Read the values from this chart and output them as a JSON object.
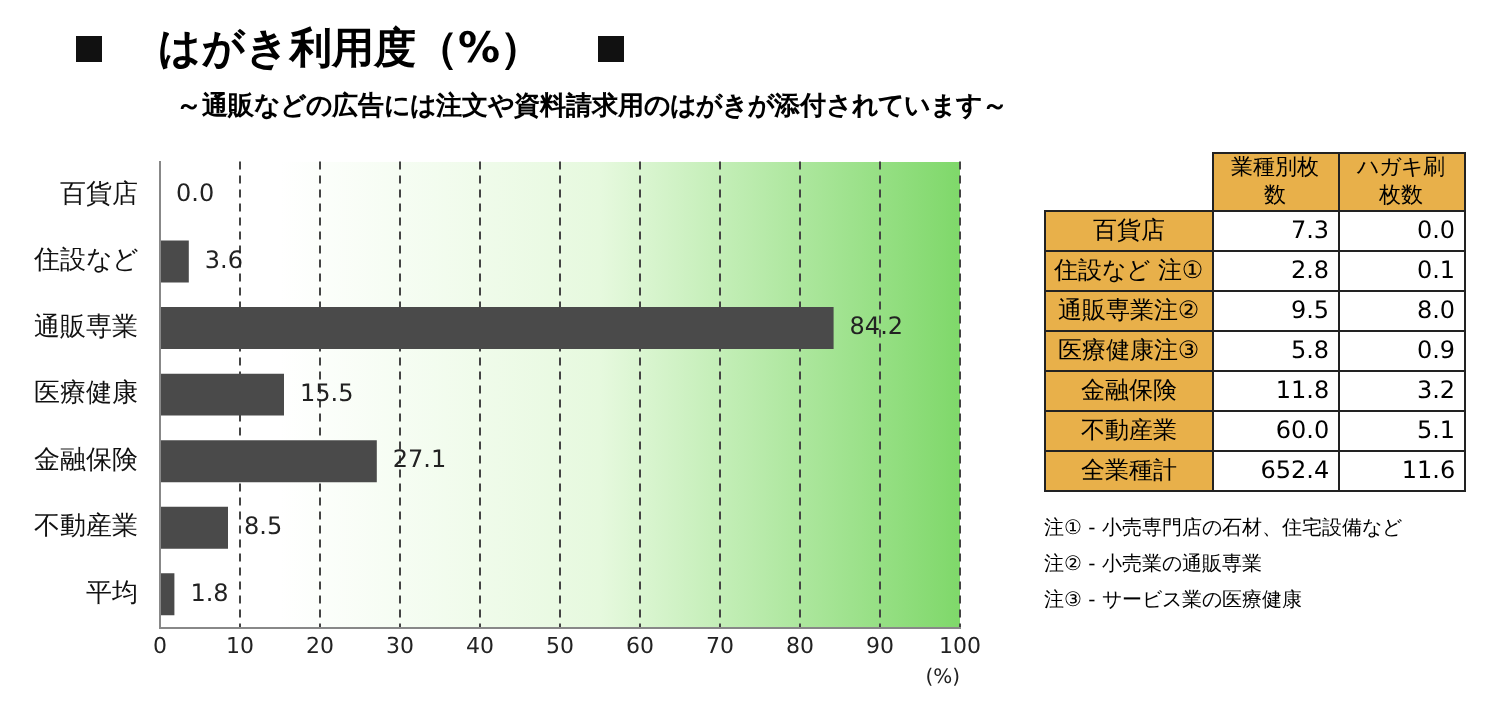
{
  "chart_data": [
    {
      "type": "bar",
      "title": "はがき利用度（%）",
      "subtitle": "～通販などの広告には注文や資料請求用のはがきが添付されています～",
      "orientation": "horizontal",
      "categories": [
        "百貨店",
        "住設など",
        "通販専業",
        "医療健康",
        "金融保険",
        "不動産業",
        "平均"
      ],
      "values": [
        0,
        3.6,
        84.2,
        15.5,
        27.1,
        8.5,
        1.8
      ],
      "value_labels": [
        "0.0",
        "3.6",
        "84.2",
        "15.5",
        "27.1",
        "8.5",
        "1.8"
      ],
      "color": "#4a4a4a",
      "xlim": [
        0,
        100
      ],
      "xticks": [
        0,
        10,
        20,
        30,
        40,
        50,
        60,
        70,
        80,
        90,
        100
      ],
      "xlabel": "(%)",
      "grid": "x",
      "legend": false
    },
    {
      "type": "heatmap",
      "categories": [
        "業種別枚数",
        "ハガキ刷枚数"
      ],
      "y_categories": [
        "百貨店",
        "住設など 注①",
        "通販専業注②",
        "医療健康注③",
        "金融保険",
        "不動産業",
        "全業種計"
      ],
      "cell_labels": [
        [
          "7.3",
          "0.0"
        ],
        [
          "2.8",
          "0.1"
        ],
        [
          "9.5",
          "8.0"
        ],
        [
          "5.8",
          "0.9"
        ],
        [
          "11.8",
          "3.2"
        ],
        [
          "60.0",
          "5.1"
        ],
        [
          "652.4",
          "11.6"
        ]
      ],
      "data_labels": true,
      "cells": [
        [
          7.3,
          0.0
        ],
        [
          2.8,
          0.1
        ],
        [
          9.5,
          8.0
        ],
        [
          5.8,
          0.9
        ],
        [
          11.8,
          3.2
        ],
        [
          60.0,
          5.1
        ],
        [
          652.4,
          11.6
        ]
      ],
      "annotations": [
        "注① - 小売専門店の石材、住宅設備など",
        "注② - 小売業の通販専業",
        "注③ - サービス業の医療健康"
      ]
    }
  ]
}
